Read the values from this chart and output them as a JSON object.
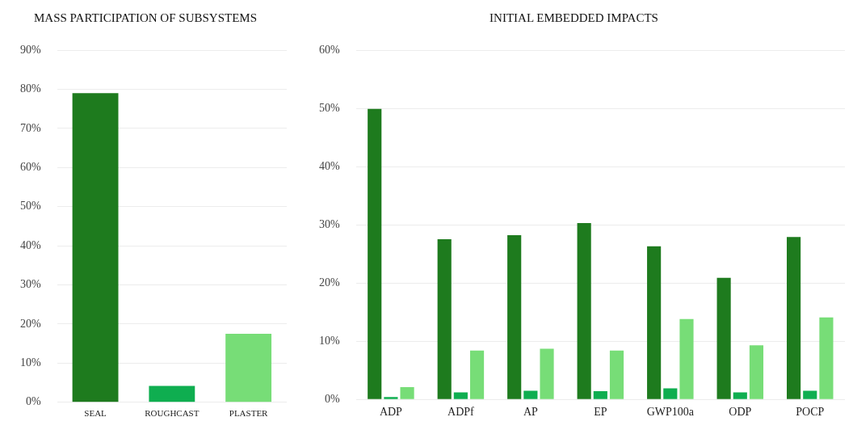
{
  "chart_data": [
    {
      "type": "bar",
      "title": "MASS PARTICIPATION OF SUBSYSTEMS",
      "categories": [
        "SEAL",
        "ROUGHCAST",
        "PLASTER"
      ],
      "values": [
        79,
        4.2,
        17.5
      ],
      "colors": [
        "#1e7b1e",
        "#0fae50",
        "#77dd77"
      ],
      "ylim": [
        0,
        90
      ],
      "yticks": [
        {
          "value": 0,
          "label": "0%"
        },
        {
          "value": 10,
          "label": "10%"
        },
        {
          "value": 20,
          "label": "20%"
        },
        {
          "value": 30,
          "label": "30%"
        },
        {
          "value": 40,
          "label": "40%"
        },
        {
          "value": 50,
          "label": "50%"
        },
        {
          "value": 60,
          "label": "60%"
        },
        {
          "value": 70,
          "label": "70%"
        },
        {
          "value": 80,
          "label": "80%"
        },
        {
          "value": 90,
          "label": "90%"
        }
      ],
      "grid": "y",
      "legend": false
    },
    {
      "type": "bar",
      "title": "INITIAL EMBEDDED IMPACTS",
      "categories": [
        "ADP",
        "ADPf",
        "AP",
        "EP",
        "GWP100a",
        "ODP",
        "POCP"
      ],
      "series": [
        {
          "color": "#1e7b1e",
          "values": [
            49.9,
            27.5,
            28.2,
            30.3,
            26.3,
            20.9,
            27.9
          ]
        },
        {
          "color": "#0fae50",
          "values": [
            0.4,
            1.2,
            1.5,
            1.4,
            1.9,
            1.2,
            1.5
          ]
        },
        {
          "color": "#77dd77",
          "values": [
            2.1,
            8.4,
            8.7,
            8.4,
            13.8,
            9.3,
            14.1
          ]
        }
      ],
      "ylim": [
        0,
        60
      ],
      "yticks": [
        {
          "value": 0,
          "label": "0%"
        },
        {
          "value": 10,
          "label": "10%"
        },
        {
          "value": 20,
          "label": "20%"
        },
        {
          "value": 30,
          "label": "30%"
        },
        {
          "value": 40,
          "label": "40%"
        },
        {
          "value": 50,
          "label": "50%"
        },
        {
          "value": 60,
          "label": "60%"
        }
      ],
      "grid": "y",
      "legend": false
    }
  ]
}
